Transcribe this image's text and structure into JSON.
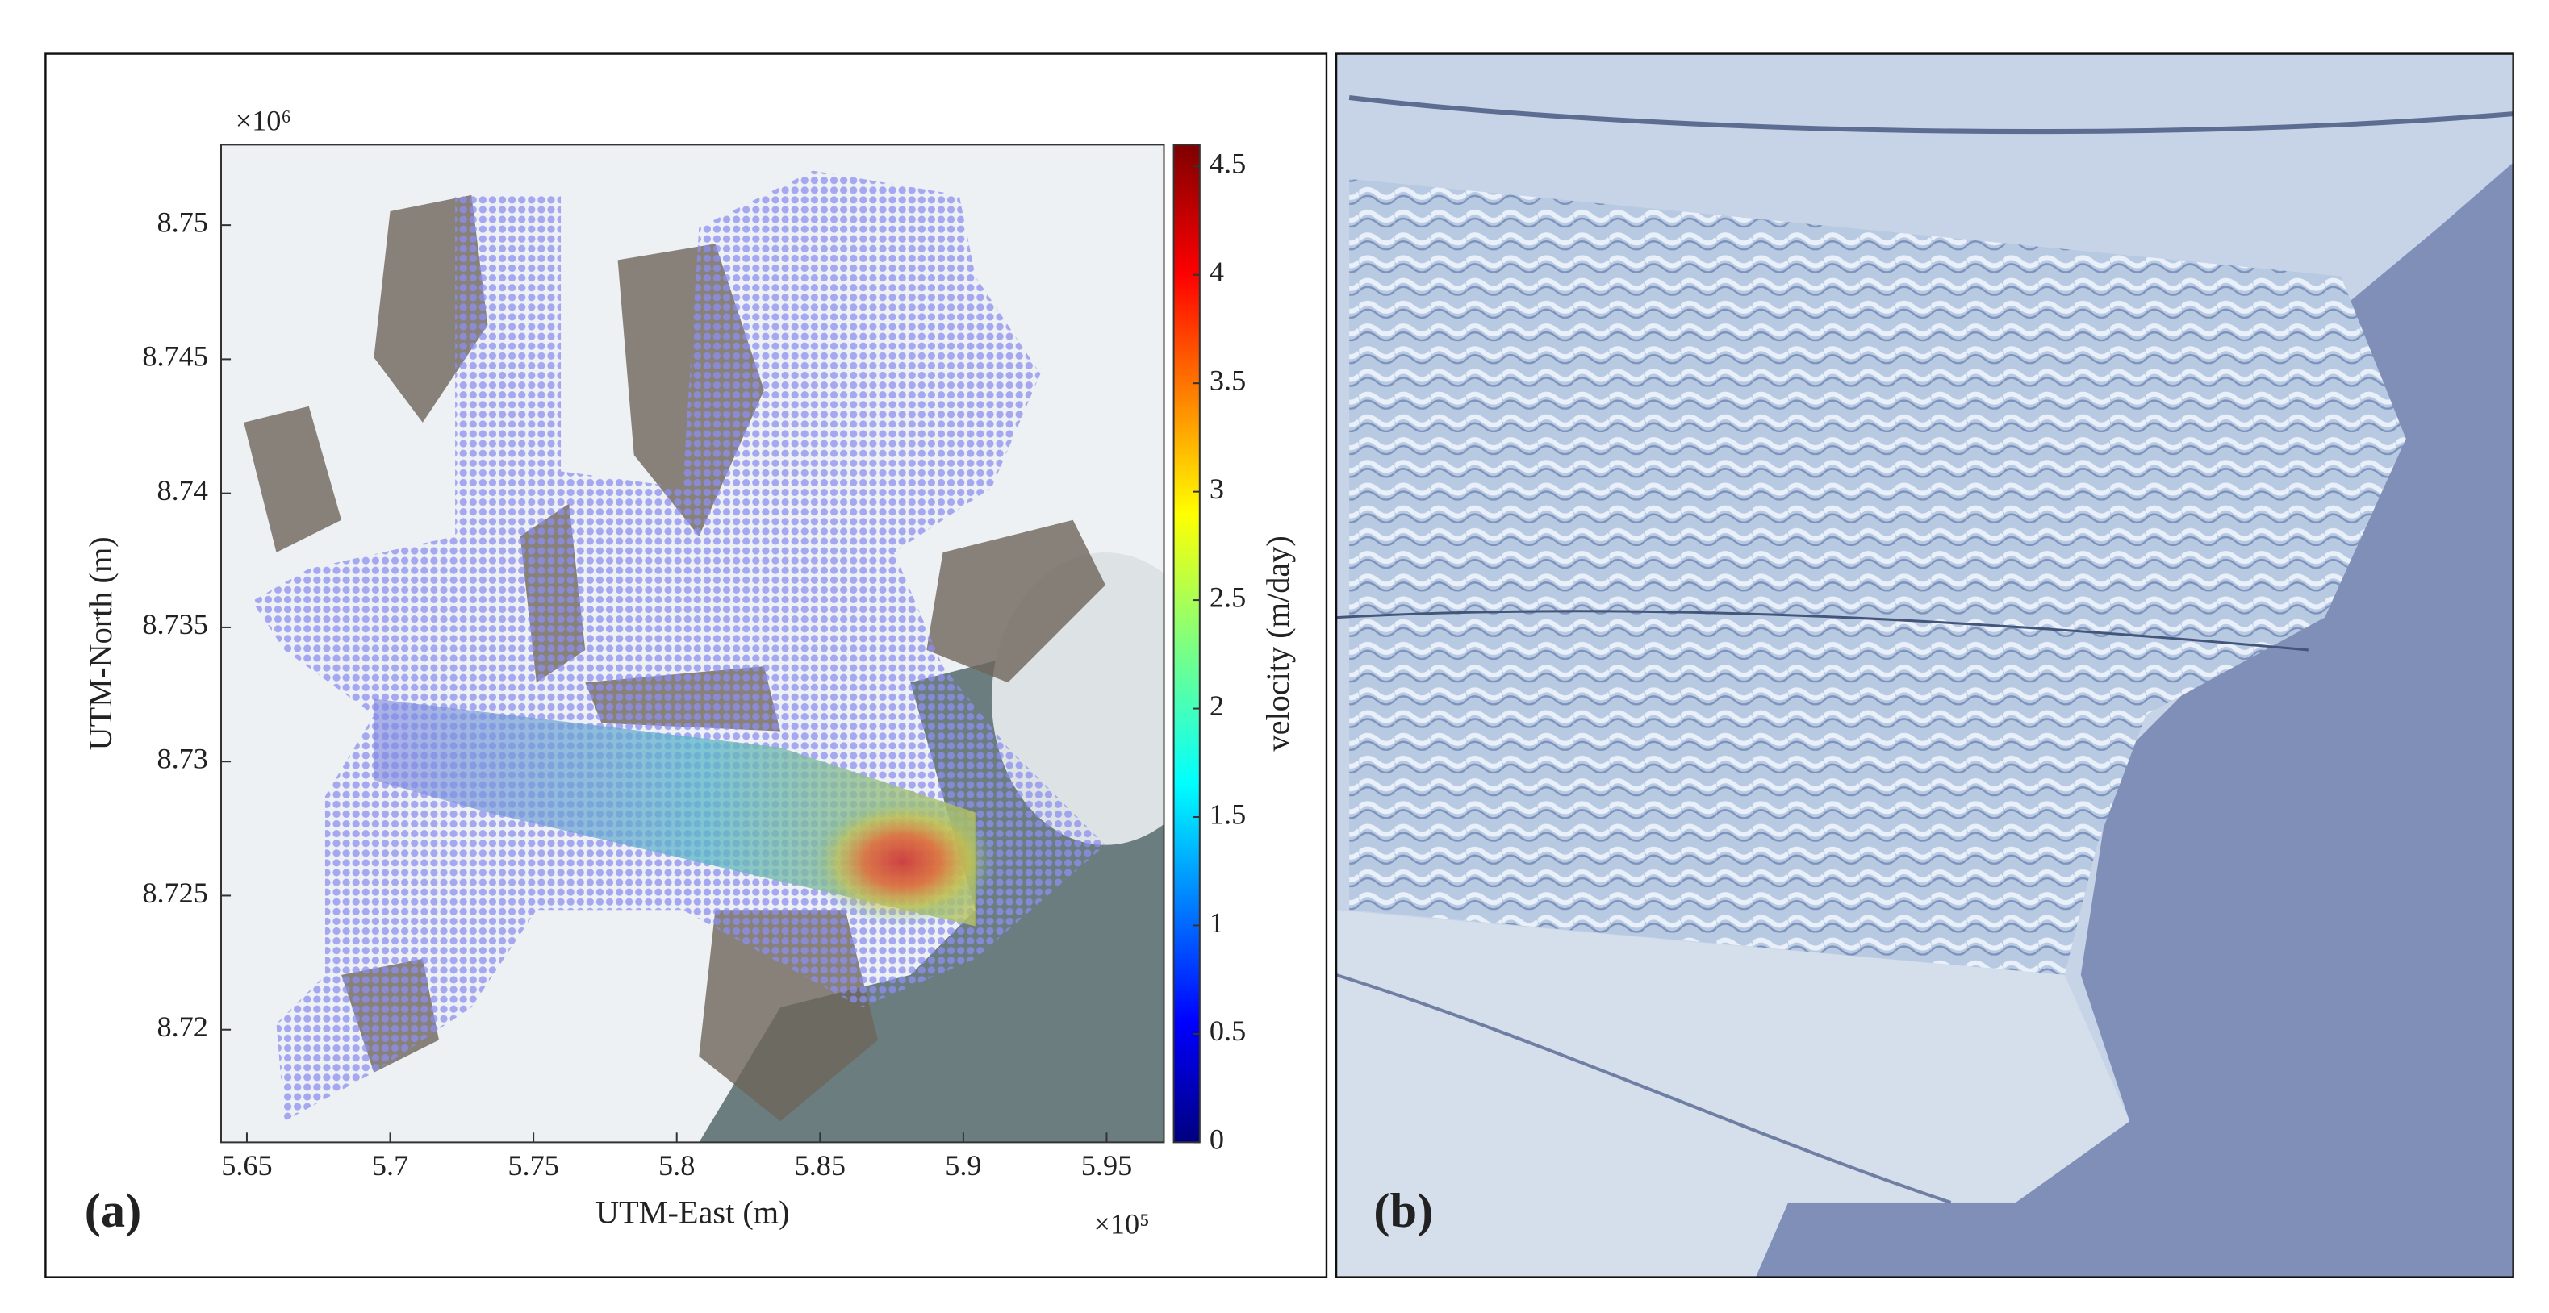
{
  "chart_data": {
    "type": "map",
    "panel_labels": [
      "(a)",
      "(b)"
    ],
    "xlabel": "UTM-East (m)",
    "ylabel": "UTM-North (m)",
    "x_multiplier": "×10⁵",
    "y_multiplier": "×10⁶",
    "xlim": [
      5.641,
      5.97
    ],
    "xticks": [
      5.65,
      5.7,
      5.75,
      5.8,
      5.85,
      5.9,
      5.95
    ],
    "ylim": [
      8.7158,
      8.753
    ],
    "yticks": [
      8.72,
      8.725,
      8.73,
      8.735,
      8.74,
      8.745,
      8.75
    ],
    "colorbar": {
      "label": "velocity (m/day)",
      "lim": [
        0,
        4.6
      ],
      "ticks": [
        0,
        0.5,
        1,
        1.5,
        2,
        2.5,
        3,
        3.5,
        4,
        4.5
      ]
    }
  }
}
